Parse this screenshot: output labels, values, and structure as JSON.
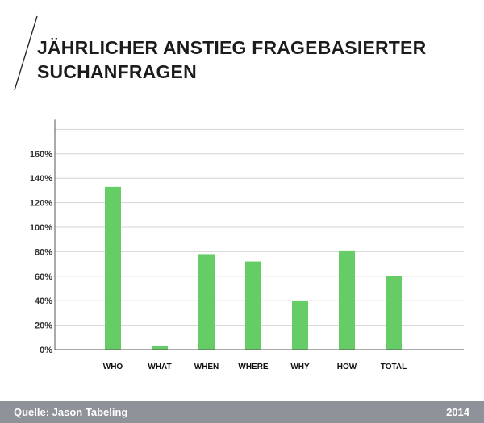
{
  "title": {
    "line1": "JÄHRLICHER ANSTIEG FRAGEBASIERTER",
    "line2": "SUCHANFRAGEN"
  },
  "footer": {
    "source": "Quelle: Jason Tabeling",
    "year": "2014"
  },
  "colors": {
    "bar": "#66cc66",
    "grid": "#d4d4d4",
    "axis": "#555555",
    "footer_bg": "#8e9299"
  },
  "chart_data": {
    "type": "bar",
    "categories": [
      "WHO",
      "WHAT",
      "WHEN",
      "WHERE",
      "WHY",
      "HOW",
      "TOTAL"
    ],
    "values": [
      133,
      3,
      78,
      72,
      40,
      81,
      60
    ],
    "yticks": [
      "0%",
      "20%",
      "40%",
      "60%",
      "80%",
      "100%",
      "120%",
      "140%",
      "160%"
    ],
    "ylim": [
      0,
      180
    ],
    "grid": true,
    "xlabel": "",
    "ylabel": ""
  }
}
